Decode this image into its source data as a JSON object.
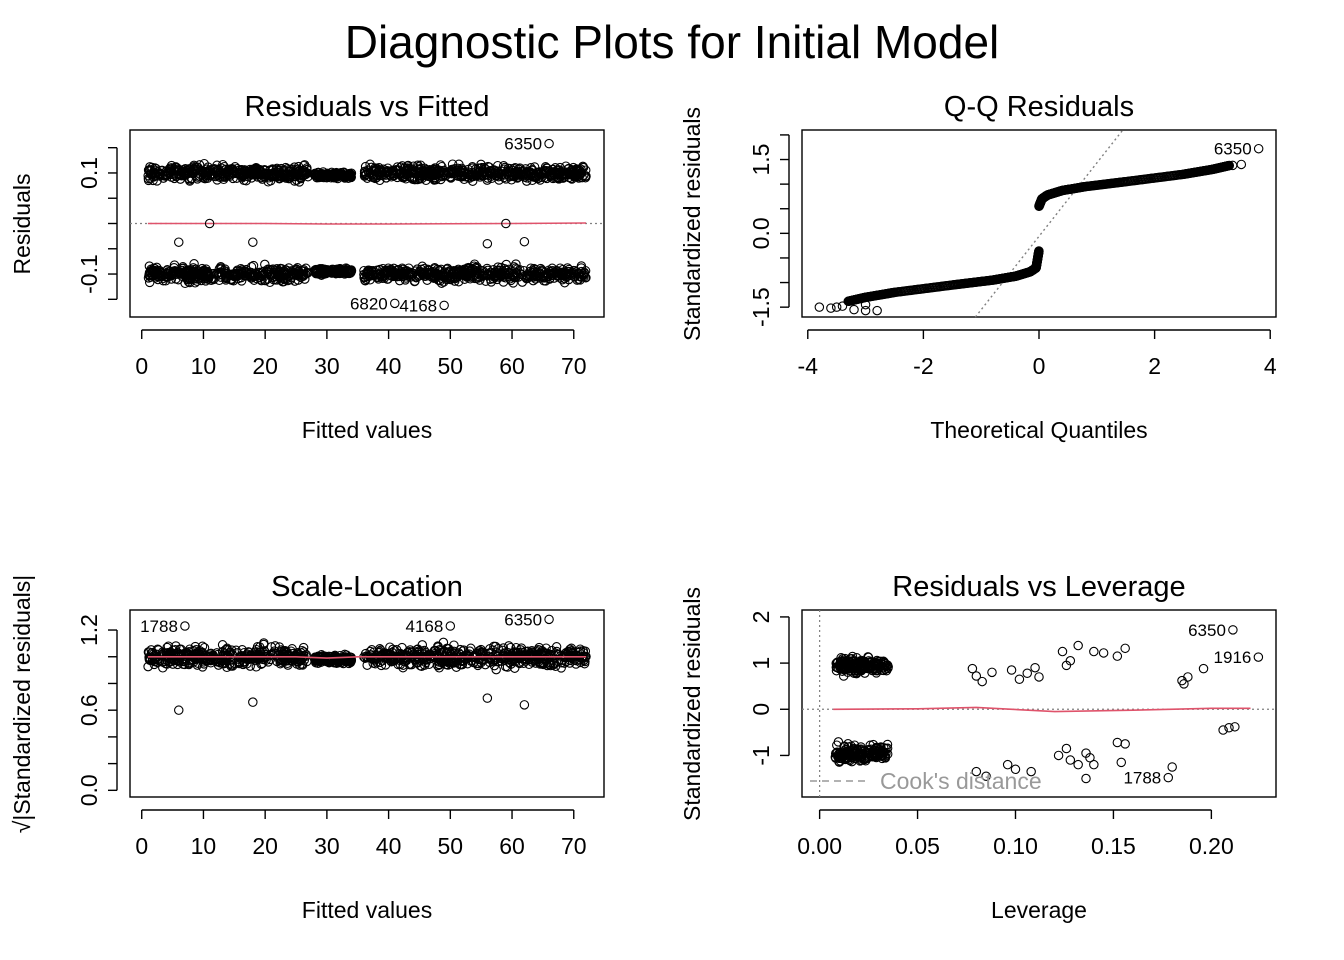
{
  "figure_title": "Diagnostic Plots for Initial Model",
  "colors": {
    "smooth": "#DF536B",
    "reference": "#808080",
    "points": "#000000",
    "cooks": "#999999"
  },
  "chart_data": [
    {
      "type": "scatter",
      "title": "Residuals vs Fitted",
      "xlabel": "Fitted values",
      "ylabel": "Residuals",
      "xlim": [
        -1.9,
        74.9
      ],
      "ylim": [
        -0.185,
        0.185
      ],
      "xticks": [
        0,
        10,
        20,
        30,
        40,
        50,
        60,
        70
      ],
      "xtick_labels": [
        "0",
        "10",
        "20",
        "30",
        "40",
        "50",
        "60",
        "70"
      ],
      "yticks": [
        -0.15,
        -0.1,
        -0.05,
        0,
        0.05,
        0.1,
        0.15
      ],
      "ytick_labels": [
        "",
        "-0.1",
        "",
        "",
        "",
        "0.1",
        ""
      ],
      "reference_line": {
        "y": 0,
        "style": "dotted",
        "color": "#808080"
      },
      "smooth_line": {
        "color": "#DF536B",
        "x": [
          1,
          20,
          30,
          40,
          60,
          72
        ],
        "y": [
          0.0,
          0.0,
          -0.001,
          -0.001,
          0.0,
          0.001
        ]
      },
      "clusters": [
        {
          "x_min": 1,
          "x_max": 27,
          "y_center": 0.1,
          "y_spread": 0.025
        },
        {
          "x_min": 28,
          "x_max": 34,
          "y_center": 0.095,
          "y_spread": 0.01
        },
        {
          "x_min": 36,
          "x_max": 72,
          "y_center": 0.1,
          "y_spread": 0.025
        },
        {
          "x_min": 1,
          "x_max": 27,
          "y_center": -0.1,
          "y_spread": 0.025
        },
        {
          "x_min": 28,
          "x_max": 34,
          "y_center": -0.095,
          "y_spread": 0.01
        },
        {
          "x_min": 36,
          "x_max": 72,
          "y_center": -0.1,
          "y_spread": 0.025
        }
      ],
      "points": [
        {
          "x": 66,
          "y": 0.158,
          "label": "6350"
        },
        {
          "x": 41,
          "y": -0.158,
          "label": "6820"
        },
        {
          "x": 49,
          "y": -0.162,
          "label": "4168"
        },
        {
          "x": 11,
          "y": 0.0
        },
        {
          "x": 59,
          "y": 0.0
        },
        {
          "x": 6,
          "y": -0.037
        },
        {
          "x": 18,
          "y": -0.037
        },
        {
          "x": 56,
          "y": -0.04
        },
        {
          "x": 62,
          "y": -0.036
        }
      ]
    },
    {
      "type": "scatter",
      "title": "Q-Q Residuals",
      "xlabel": "Theoretical Quantiles",
      "ylabel": "Standardized residuals",
      "xlim": [
        -4.1,
        4.1
      ],
      "ylim": [
        -1.7,
        2.1
      ],
      "xticks": [
        -4,
        -2,
        0,
        2,
        4
      ],
      "xtick_labels": [
        "-4",
        "-2",
        "0",
        "2",
        "4"
      ],
      "yticks": [
        -1.5,
        -1.0,
        -0.5,
        0.0,
        0.5,
        1.0,
        1.5,
        2.0
      ],
      "ytick_labels": [
        "-1.5",
        "",
        "",
        "0.0",
        "",
        "",
        "1.5",
        ""
      ],
      "reference_line": {
        "style": "dotted",
        "color": "#808080",
        "x": [
          -1.1,
          1.45
        ],
        "y": [
          -1.7,
          2.1
        ]
      },
      "upper_curve": {
        "x": [
          0,
          0.05,
          0.15,
          0.4,
          0.8,
          1.5,
          2.5,
          3.0,
          3.3
        ],
        "y": [
          0.55,
          0.7,
          0.78,
          0.87,
          0.95,
          1.05,
          1.2,
          1.3,
          1.38
        ]
      },
      "lower_curve": {
        "x": [
          -3.3,
          -3.0,
          -2.5,
          -1.5,
          -0.8,
          -0.4,
          -0.15,
          -0.05,
          0
        ],
        "y": [
          -1.38,
          -1.3,
          -1.2,
          -1.05,
          -0.95,
          -0.87,
          -0.78,
          -0.7,
          -0.35
        ]
      },
      "points": [
        {
          "x": 3.8,
          "y": 1.72,
          "label": "6350"
        },
        {
          "x": 3.5,
          "y": 1.4
        },
        {
          "x": 3.35,
          "y": 1.38
        },
        {
          "x": -3.8,
          "y": -1.5
        },
        {
          "x": -3.5,
          "y": -1.5
        },
        {
          "x": -3.4,
          "y": -1.48
        },
        {
          "x": -3.2,
          "y": -1.55
        },
        {
          "x": -3.0,
          "y": -1.57
        },
        {
          "x": -2.8,
          "y": -1.57
        },
        {
          "x": -3.6,
          "y": -1.52
        },
        {
          "x": -3.0,
          "y": -1.45
        }
      ]
    },
    {
      "type": "scatter",
      "title": "Scale-Location",
      "xlabel": "Fitted values",
      "ylabel": "√|Standardized residuals|",
      "xlim": [
        -1.9,
        74.9
      ],
      "ylim": [
        -0.05,
        1.35
      ],
      "xticks": [
        0,
        10,
        20,
        30,
        40,
        50,
        60,
        70
      ],
      "xtick_labels": [
        "0",
        "10",
        "20",
        "30",
        "40",
        "50",
        "60",
        "70"
      ],
      "yticks": [
        0.0,
        0.2,
        0.4,
        0.6,
        0.8,
        1.0,
        1.2
      ],
      "ytick_labels": [
        "0.0",
        "",
        "",
        "0.6",
        "",
        "",
        "1.2"
      ],
      "smooth_line": {
        "color": "#DF536B",
        "x": [
          1,
          25,
          30,
          35,
          50,
          72
        ],
        "y": [
          1.0,
          1.0,
          0.99,
          1.0,
          1.0,
          1.0
        ]
      },
      "clusters": [
        {
          "x_min": 1,
          "x_max": 27,
          "y_center": 1.0,
          "y_spread": 0.13
        },
        {
          "x_min": 28,
          "x_max": 34,
          "y_center": 0.98,
          "y_spread": 0.05
        },
        {
          "x_min": 36,
          "x_max": 72,
          "y_center": 1.0,
          "y_spread": 0.13
        }
      ],
      "points": [
        {
          "x": 7,
          "y": 1.23,
          "label": "1788"
        },
        {
          "x": 50,
          "y": 1.23,
          "label": "4168"
        },
        {
          "x": 66,
          "y": 1.28,
          "label": "6350"
        },
        {
          "x": 6,
          "y": 0.6
        },
        {
          "x": 18,
          "y": 0.66
        },
        {
          "x": 62,
          "y": 0.64
        },
        {
          "x": 56,
          "y": 0.69
        }
      ]
    },
    {
      "type": "scatter",
      "title": "Residuals vs Leverage",
      "xlabel": "Leverage",
      "ylabel": "Standardized residuals",
      "xlim": [
        -0.009,
        0.233
      ],
      "ylim": [
        -1.9,
        2.15
      ],
      "xticks": [
        0.0,
        0.05,
        0.1,
        0.15,
        0.2
      ],
      "xtick_labels": [
        "0.00",
        "0.05",
        "0.10",
        "0.15",
        "0.20"
      ],
      "yticks": [
        -1,
        0,
        1,
        2
      ],
      "ytick_labels": [
        "-1",
        "0",
        "1",
        "2"
      ],
      "reference_lines": [
        {
          "y": 0,
          "style": "dotted",
          "color": "#808080"
        },
        {
          "x": 0,
          "style": "dotted",
          "color": "#808080"
        }
      ],
      "smooth_line": {
        "color": "#DF536B",
        "x": [
          0.007,
          0.05,
          0.08,
          0.12,
          0.16,
          0.2,
          0.22
        ],
        "y": [
          0.0,
          0.01,
          0.04,
          -0.05,
          -0.02,
          0.02,
          0.02
        ]
      },
      "legend": {
        "text": "Cook's distance",
        "position": "bottom-left",
        "color": "#999999"
      },
      "clusters": [
        {
          "x_min": 0.008,
          "x_max": 0.035,
          "y_center": 0.95,
          "y_spread": 0.3
        },
        {
          "x_min": 0.008,
          "x_max": 0.035,
          "y_center": -0.95,
          "y_spread": 0.3
        }
      ],
      "points": [
        {
          "x": 0.211,
          "y": 1.72,
          "label": "6350"
        },
        {
          "x": 0.224,
          "y": 1.13,
          "label": "1916"
        },
        {
          "x": 0.178,
          "y": -1.48,
          "label": "1788"
        },
        {
          "x": 0.078,
          "y": 0.88
        },
        {
          "x": 0.08,
          "y": 0.72
        },
        {
          "x": 0.083,
          "y": 0.6
        },
        {
          "x": 0.088,
          "y": 0.8
        },
        {
          "x": 0.098,
          "y": 0.85
        },
        {
          "x": 0.102,
          "y": 0.65
        },
        {
          "x": 0.106,
          "y": 0.78
        },
        {
          "x": 0.11,
          "y": 0.9
        },
        {
          "x": 0.112,
          "y": 0.7
        },
        {
          "x": 0.124,
          "y": 1.25
        },
        {
          "x": 0.128,
          "y": 1.05
        },
        {
          "x": 0.132,
          "y": 1.38
        },
        {
          "x": 0.126,
          "y": 0.95
        },
        {
          "x": 0.14,
          "y": 1.25
        },
        {
          "x": 0.145,
          "y": 1.22
        },
        {
          "x": 0.152,
          "y": 1.15
        },
        {
          "x": 0.156,
          "y": 1.32
        },
        {
          "x": 0.185,
          "y": 0.62
        },
        {
          "x": 0.188,
          "y": 0.7
        },
        {
          "x": 0.186,
          "y": 0.55
        },
        {
          "x": 0.196,
          "y": 0.88
        },
        {
          "x": 0.08,
          "y": -1.35
        },
        {
          "x": 0.085,
          "y": -1.45
        },
        {
          "x": 0.096,
          "y": -1.2
        },
        {
          "x": 0.1,
          "y": -1.3
        },
        {
          "x": 0.108,
          "y": -1.35
        },
        {
          "x": 0.122,
          "y": -1.0
        },
        {
          "x": 0.126,
          "y": -0.85
        },
        {
          "x": 0.128,
          "y": -1.1
        },
        {
          "x": 0.132,
          "y": -1.2
        },
        {
          "x": 0.136,
          "y": -0.95
        },
        {
          "x": 0.138,
          "y": -1.05
        },
        {
          "x": 0.14,
          "y": -1.2
        },
        {
          "x": 0.136,
          "y": -1.5
        },
        {
          "x": 0.152,
          "y": -0.72
        },
        {
          "x": 0.156,
          "y": -0.75
        },
        {
          "x": 0.154,
          "y": -1.15
        },
        {
          "x": 0.18,
          "y": -1.25
        },
        {
          "x": 0.206,
          "y": -0.45
        },
        {
          "x": 0.209,
          "y": -0.4
        },
        {
          "x": 0.212,
          "y": -0.38
        }
      ]
    }
  ]
}
